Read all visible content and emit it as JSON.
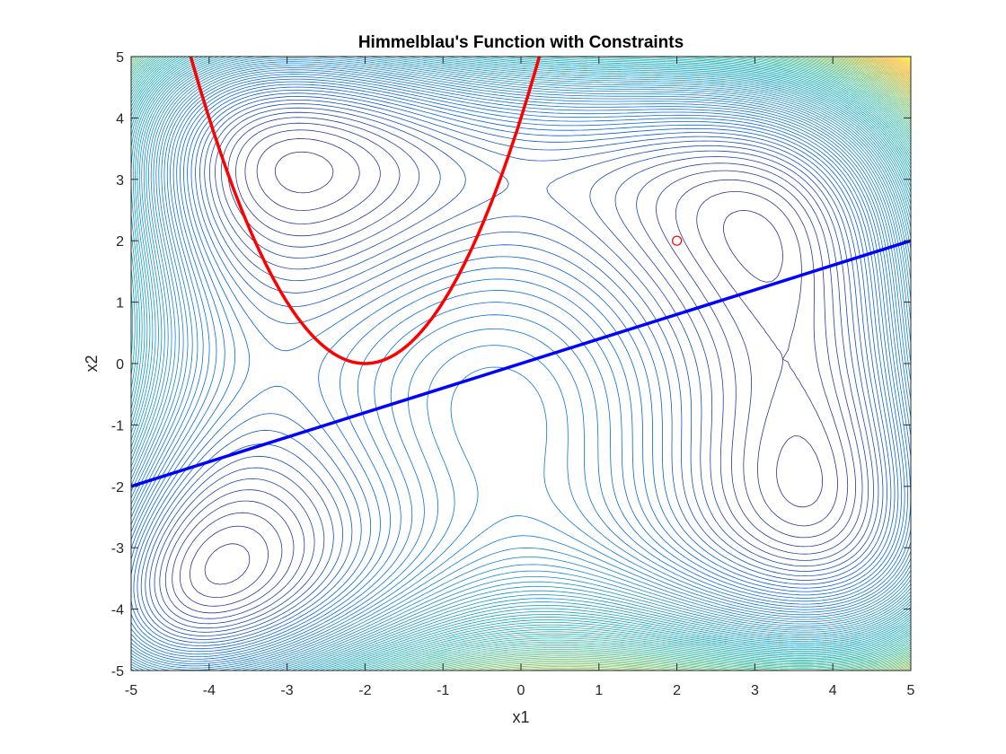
{
  "chart_data": {
    "type": "contour",
    "title": "Himmelblau's Function with Constraints",
    "xlabel": "x1",
    "ylabel": "x2",
    "xlim": [
      -5,
      5
    ],
    "ylim": [
      -5,
      5
    ],
    "xticks": [
      -5,
      -4,
      -3,
      -2,
      -1,
      0,
      1,
      2,
      3,
      4,
      5
    ],
    "yticks": [
      -5,
      -4,
      -3,
      -2,
      -1,
      0,
      1,
      2,
      3,
      4,
      5
    ],
    "grid": false,
    "legend": "none",
    "contour": {
      "function": "himmelblau",
      "levels": 100,
      "colormap": "parula"
    },
    "constraints": [
      {
        "shape": "parabola",
        "equation": "x2 = (x1 + 2)^2",
        "color": "#ff0000"
      },
      {
        "shape": "line",
        "equation": "x2 = 0.4 * x1",
        "color": "#0000ff"
      }
    ],
    "markers": [
      {
        "x": 2,
        "y": 2,
        "symbol": "circle",
        "color": "#ff0000"
      }
    ]
  }
}
